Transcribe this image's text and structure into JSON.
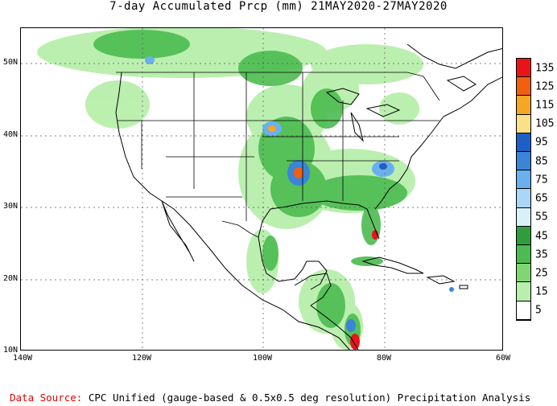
{
  "title": "7-day Accumulated Prcp (mm) 21MAY2020-27MAY2020",
  "lat_labels": [
    "50N",
    "40N",
    "30N",
    "20N",
    "10N"
  ],
  "lon_labels": [
    "140W",
    "120W",
    "100W",
    "80W",
    "60W"
  ],
  "legend": {
    "labels": [
      "135",
      "125",
      "115",
      "105",
      "95",
      "85",
      "75",
      "65",
      "55",
      "45",
      "35",
      "25",
      "15",
      "5"
    ],
    "colors": [
      "#e8141a",
      "#f06010",
      "#f5a623",
      "#fbe08a",
      "#1e5fc7",
      "#3c84d8",
      "#6ab0ee",
      "#aad6f7",
      "#d9f0fb",
      "#2f9e3a",
      "#4cbb50",
      "#7dd872",
      "#b8efab",
      "#ffffff"
    ]
  },
  "footer": {
    "source_label": "Data Source:",
    "source_text": "CPC Unified (gauge-based & 0.5x0.5 deg resolution) Precipitation Analysis"
  }
}
